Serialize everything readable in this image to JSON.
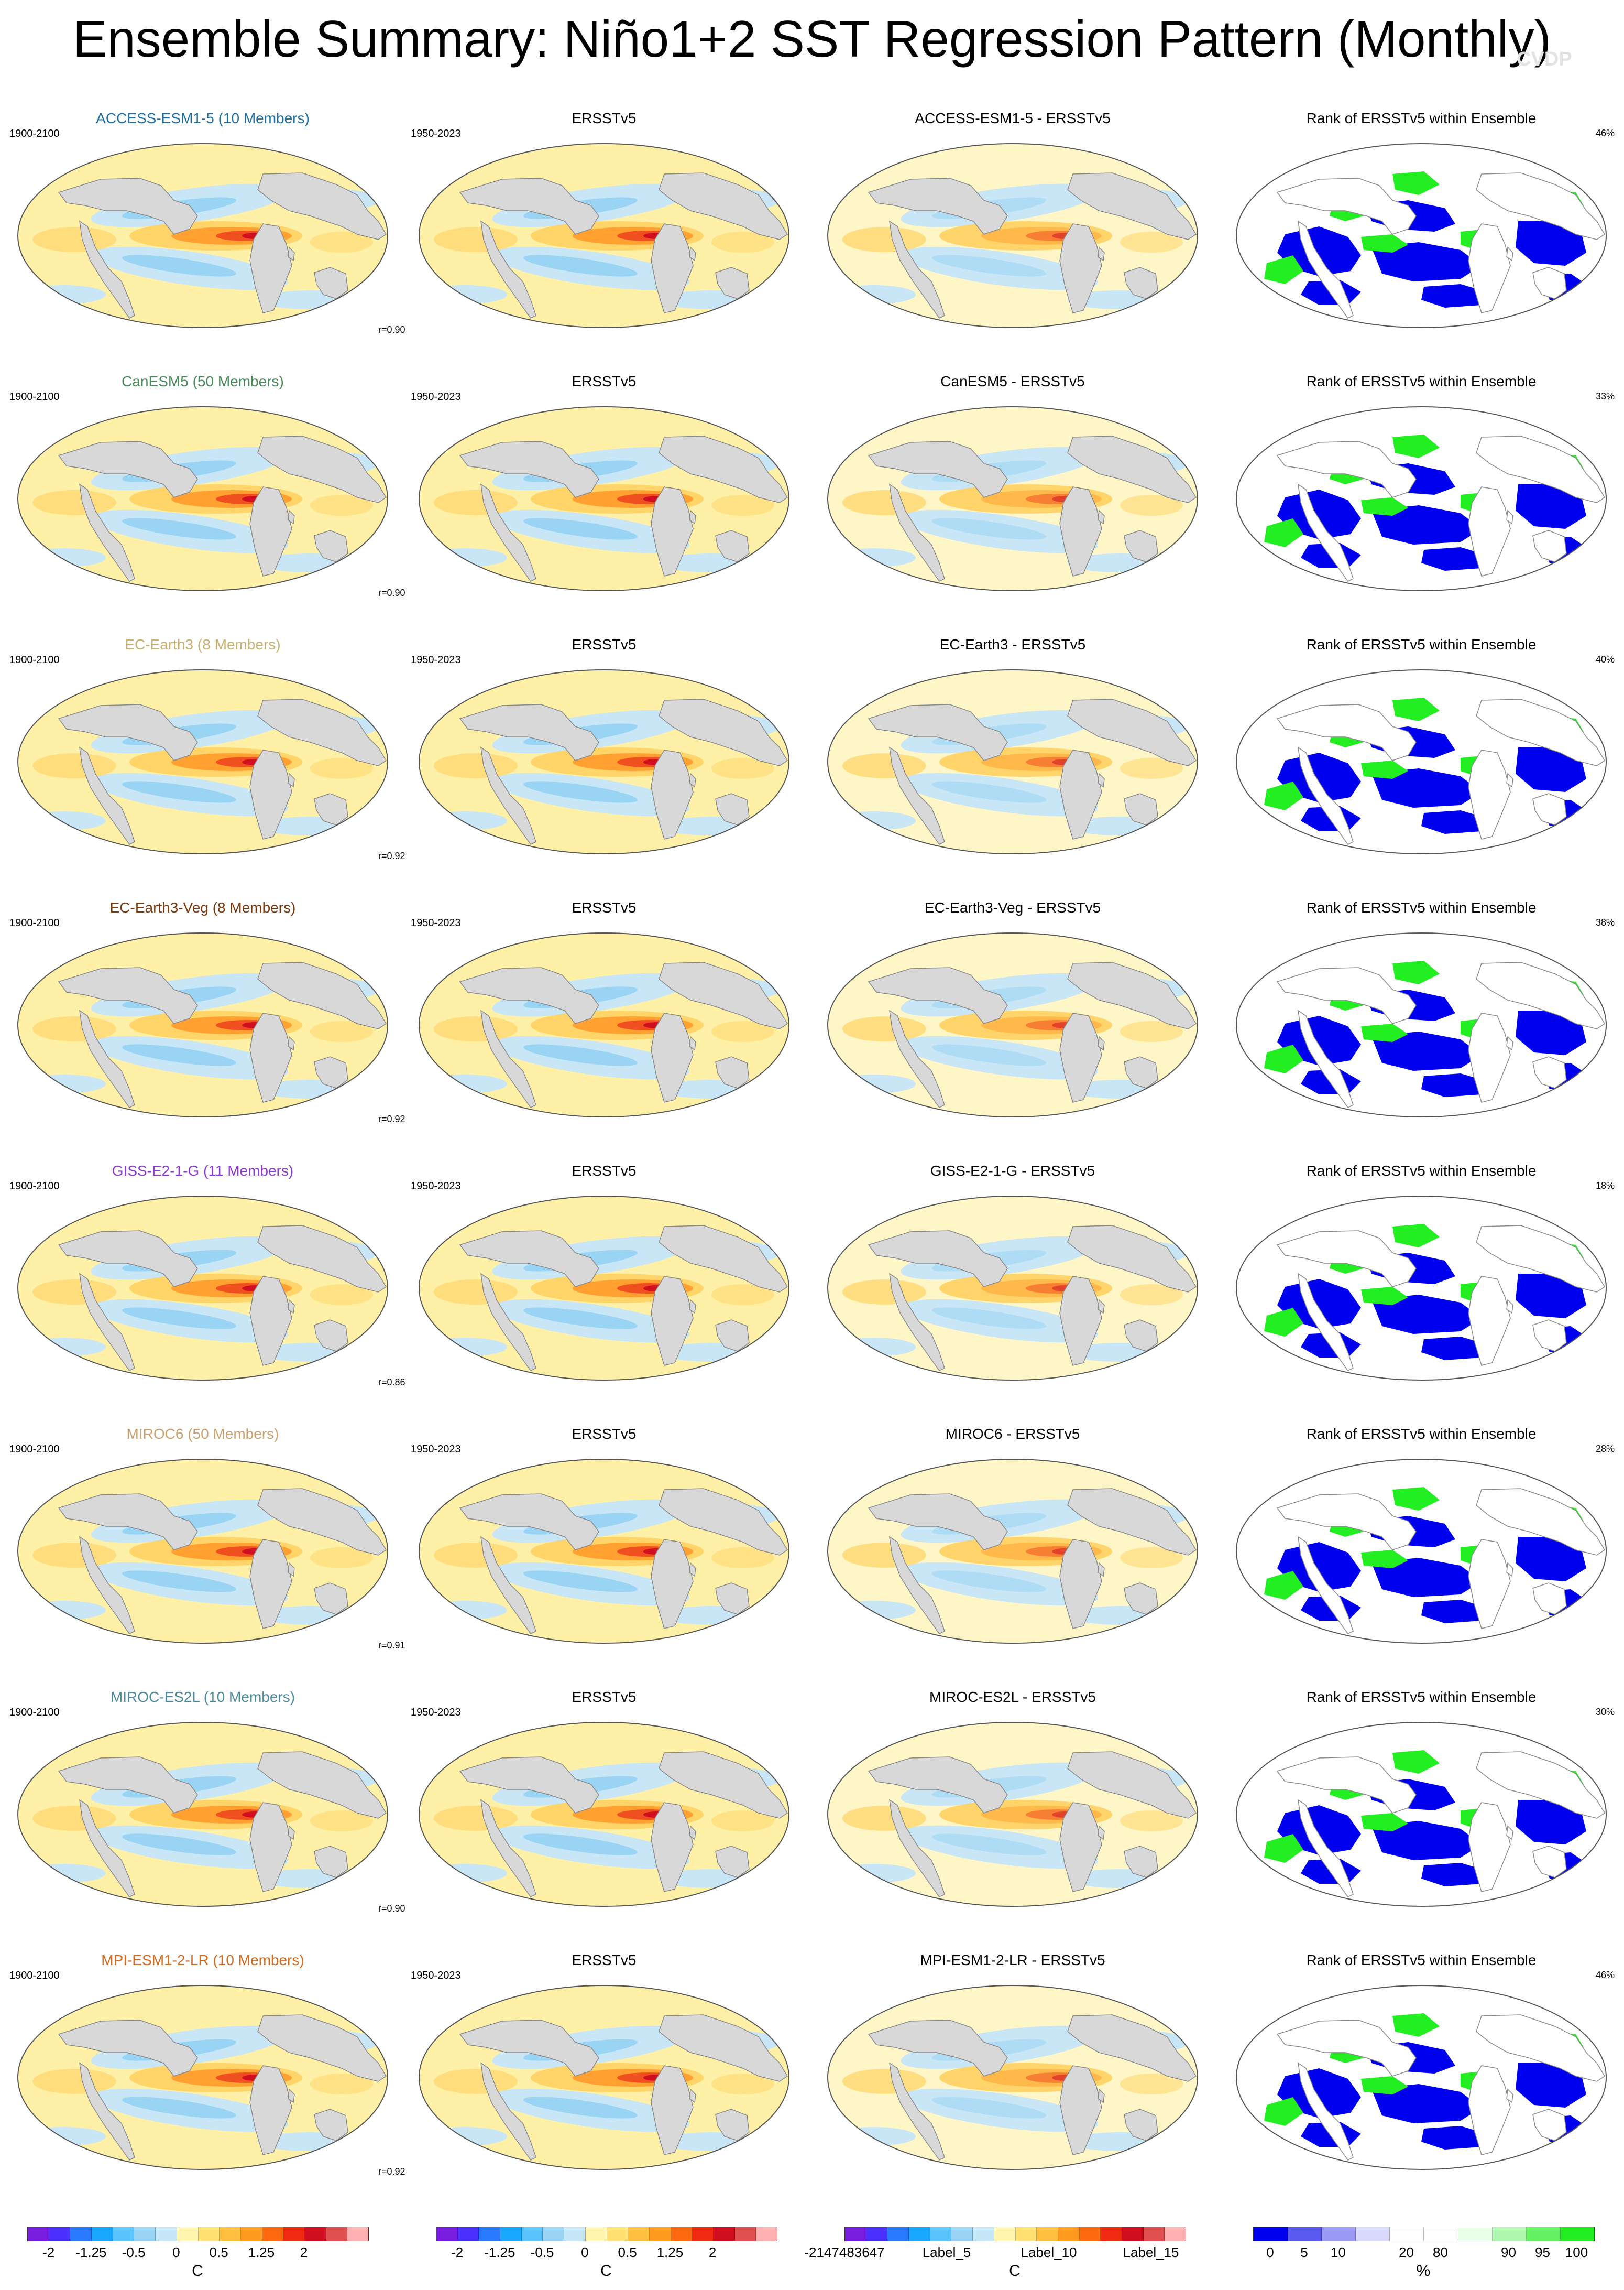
{
  "title": "Ensemble Summary: Niño1+2 SST Regression Pattern (Monthly)",
  "watermark": "CVDP",
  "obs_name": "ERSSTv5",
  "obs_period": "1950-2023",
  "model_period": "1900-2100",
  "rank_title": "Rank of ERSSTv5 within Ensemble",
  "colors": {
    "land": "#d8d8d8",
    "coast": "#8a8a8a",
    "rank_blue": "#0000ee",
    "rank_green": "#22ee22",
    "rank_white": "#ffffff"
  },
  "rows": [
    {
      "model_title": "ACCESS-ESM1-5 (10 Members)",
      "title_color": "#1f6fa0",
      "diff_title": "ACCESS-ESM1-5 - ERSSTv5",
      "r": "r=0.90",
      "pct": "46%"
    },
    {
      "model_title": "CanESM5 (50 Members)",
      "title_color": "#4a8a5a",
      "diff_title": "CanESM5 - ERSSTv5",
      "r": "r=0.90",
      "pct": "33%"
    },
    {
      "model_title": "EC-Earth3 (8 Members)",
      "title_color": "#c8b070",
      "diff_title": "EC-Earth3 - ERSSTv5",
      "r": "r=0.92",
      "pct": "40%"
    },
    {
      "model_title": "EC-Earth3-Veg (8 Members)",
      "title_color": "#7a3a10",
      "diff_title": "EC-Earth3-Veg - ERSSTv5",
      "r": "r=0.92",
      "pct": "38%"
    },
    {
      "model_title": "GISS-E2-1-G (11 Members)",
      "title_color": "#8a3ad0",
      "diff_title": "GISS-E2-1-G - ERSSTv5",
      "r": "r=0.86",
      "pct": "18%"
    },
    {
      "model_title": "MIROC6 (50 Members)",
      "title_color": "#c8a070",
      "diff_title": "MIROC6 - ERSSTv5",
      "r": "r=0.91",
      "pct": "28%"
    },
    {
      "model_title": "MIROC-ES2L (10 Members)",
      "title_color": "#4a8a9a",
      "diff_title": "MIROC-ES2L - ERSSTv5",
      "r": "r=0.90",
      "pct": "30%"
    },
    {
      "model_title": "MPI-ESM1-2-LR (10 Members)",
      "title_color": "#d06a20",
      "diff_title": "MPI-ESM1-2-LR - ERSSTv5",
      "r": "r=0.92",
      "pct": "46%"
    }
  ],
  "colorbars": [
    {
      "unit": "C",
      "colors": [
        "#7a1fe0",
        "#4a30ff",
        "#2a7aff",
        "#1aa8ff",
        "#5ac4ff",
        "#9ad4f4",
        "#c4e6f6",
        "#fff4b0",
        "#ffe070",
        "#ffc040",
        "#ff9a20",
        "#ff6a10",
        "#f02a10",
        "#d01020",
        "#e05050",
        "#ffb0b0"
      ],
      "ticks": [
        "-2",
        "-1.25",
        "-0.5",
        "0",
        "0.5",
        "1.25",
        "2"
      ],
      "tick_pos": [
        0.0625,
        0.1875,
        0.3125,
        0.4375,
        0.5625,
        0.6875,
        0.8125
      ]
    },
    {
      "unit": "C",
      "colors": [
        "#7a1fe0",
        "#4a30ff",
        "#2a7aff",
        "#1aa8ff",
        "#5ac4ff",
        "#9ad4f4",
        "#c4e6f6",
        "#fff4b0",
        "#ffe070",
        "#ffc040",
        "#ff9a20",
        "#ff6a10",
        "#f02a10",
        "#d01020",
        "#e05050",
        "#ffb0b0"
      ],
      "ticks": [
        "-2",
        "-1.25",
        "-0.5",
        "0",
        "0.5",
        "1.25",
        "2"
      ],
      "tick_pos": [
        0.0625,
        0.1875,
        0.3125,
        0.4375,
        0.5625,
        0.6875,
        0.8125
      ]
    },
    {
      "unit": "C",
      "colors": [
        "#7a1fe0",
        "#4a30ff",
        "#2a7aff",
        "#1aa8ff",
        "#5ac4ff",
        "#9ad4f4",
        "#c4e6f6",
        "#fff4b0",
        "#ffe070",
        "#ffc040",
        "#ff9a20",
        "#ff6a10",
        "#f02a10",
        "#d01020",
        "#e05050",
        "#ffb0b0"
      ],
      "ticks": [
        "-2147483647",
        "Label_5",
        "Label_10",
        "Label_15"
      ],
      "tick_pos": [
        0.0,
        0.3,
        0.6,
        0.9
      ]
    },
    {
      "unit": "%",
      "colors": [
        "#0000ee",
        "#5a5af0",
        "#9a9af4",
        "#d8d8fa",
        "#ffffff",
        "#ffffff",
        "#e8ffe8",
        "#b0f8b0",
        "#60f060",
        "#22ee22"
      ],
      "ticks": [
        "0",
        "5",
        "10",
        "20",
        "80",
        "90",
        "95",
        "100"
      ],
      "tick_pos": [
        0.05,
        0.15,
        0.25,
        0.45,
        0.55,
        0.75,
        0.85,
        0.95
      ]
    }
  ]
}
